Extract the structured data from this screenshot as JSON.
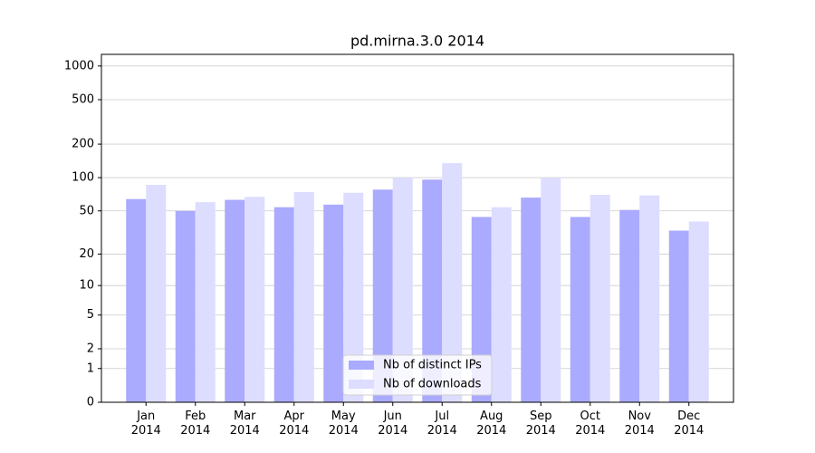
{
  "chart_data": {
    "type": "bar",
    "title": "pd.mirna.3.0 2014",
    "categories": [
      "Jan\n2014",
      "Feb\n2014",
      "Mar\n2014",
      "Apr\n2014",
      "May\n2014",
      "Jun\n2014",
      "Jul\n2014",
      "Aug\n2014",
      "Sep\n2014",
      "Oct\n2014",
      "Nov\n2014",
      "Dec\n2014"
    ],
    "series": [
      {
        "name": "Nb of distinct IPs",
        "color": "#aaaaff",
        "values": [
          64,
          50,
          63,
          54,
          57,
          78,
          96,
          44,
          66,
          44,
          51,
          33
        ]
      },
      {
        "name": "Nb of downloads",
        "color": "#ddddff",
        "values": [
          86,
          60,
          67,
          74,
          73,
          100,
          135,
          54,
          100,
          70,
          69,
          40
        ]
      }
    ],
    "yscale": "log1p",
    "ylim": [
      0,
      1270
    ],
    "yticks": [
      0,
      1,
      2,
      5,
      10,
      20,
      50,
      100,
      200,
      500,
      1000
    ],
    "grid": true,
    "legend": "lower center"
  }
}
